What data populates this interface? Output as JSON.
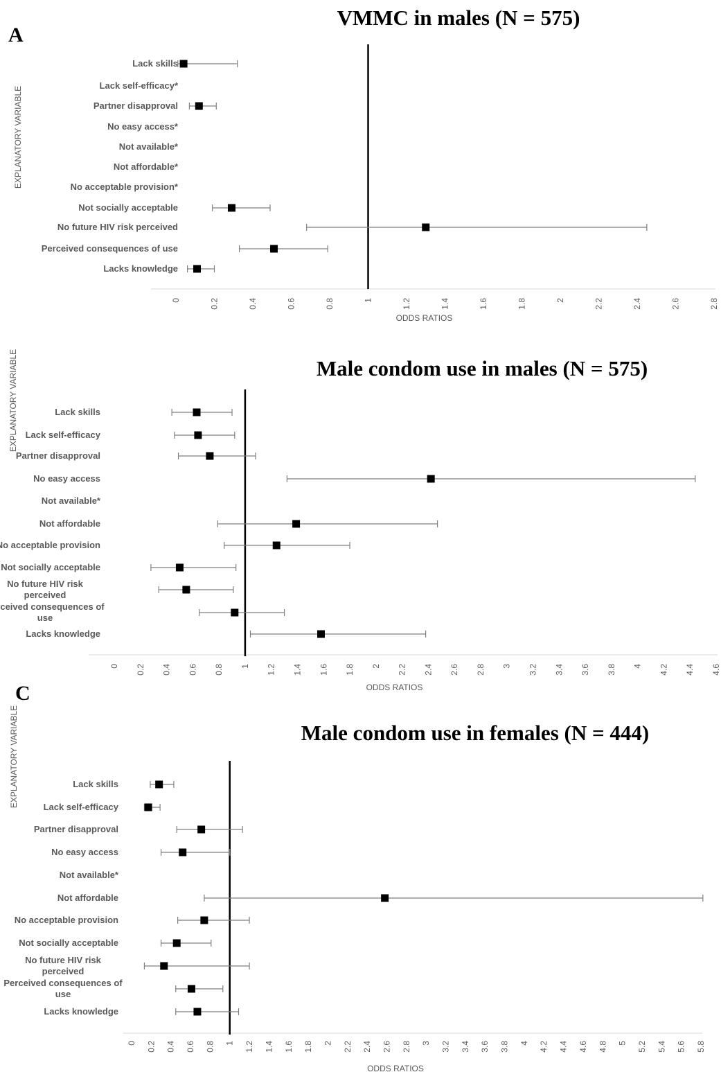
{
  "panel_letters": [
    "A",
    "",
    "C"
  ],
  "chart_data": [
    {
      "type": "scatter",
      "title": "VMMC in males (N = 575)",
      "xlabel": "ODDS RATIOS",
      "ylabel": "EXPLANATORY VARIABLE",
      "reference_line": 1,
      "xlim": [
        0,
        2.8
      ],
      "x_ticks": [
        "0",
        "0.2",
        "0.4",
        "0.6",
        "0.8",
        "1",
        "1.2",
        "1.4",
        "1.6",
        "1.8",
        "2",
        "2.2",
        "2.4",
        "2.6",
        "2.8"
      ],
      "categories": [
        "Lack skills",
        "Lack self-efficacy*",
        "Partner disapproval",
        "No easy access*",
        "Not available*",
        "Not affordable*",
        "No acceptable provision*",
        "Not socially acceptable",
        "No future HIV risk perceived",
        "Perceived consequences of use",
        "Lacks knowledge"
      ],
      "values": [
        0.04,
        null,
        0.12,
        null,
        null,
        null,
        null,
        0.29,
        1.3,
        0.51,
        0.11
      ],
      "ci_lower": [
        0.01,
        null,
        0.07,
        null,
        null,
        null,
        null,
        0.19,
        0.68,
        0.33,
        0.06
      ],
      "ci_upper": [
        0.32,
        null,
        0.21,
        null,
        null,
        null,
        null,
        0.49,
        2.45,
        0.79,
        0.2
      ]
    },
    {
      "type": "scatter",
      "title": "Male condom use in males (N = 575)",
      "xlabel": "ODDS RATIOS",
      "ylabel": "EXPLANATORY VARIABLE",
      "reference_line": 1,
      "xlim": [
        0,
        4.6
      ],
      "x_ticks": [
        "0",
        "0.2",
        "0.4",
        "0.6",
        "0.8",
        "1",
        "1.2",
        "1.4",
        "1.6",
        "1.8",
        "2",
        "2.2",
        "2.4",
        "2.6",
        "2.8",
        "3",
        "3.2",
        "3.4",
        "3.6",
        "3.8",
        "4",
        "4.2",
        "4.4",
        "4.6"
      ],
      "categories": [
        "Lack skills",
        "Lack self-efficacy",
        "Partner disapproval",
        "No easy access",
        "Not available*",
        "Not affordable",
        "No acceptable provision",
        "Not socially acceptable",
        "No future HIV risk perceived",
        "Perceived consequences of use",
        "Lacks knowledge"
      ],
      "values": [
        0.63,
        0.64,
        0.73,
        2.42,
        null,
        1.39,
        1.24,
        0.5,
        0.55,
        0.92,
        1.58
      ],
      "ci_lower": [
        0.44,
        0.46,
        0.49,
        1.32,
        null,
        0.79,
        0.84,
        0.28,
        0.34,
        0.65,
        1.04
      ],
      "ci_upper": [
        0.9,
        0.92,
        1.08,
        4.44,
        null,
        2.47,
        1.8,
        0.93,
        0.91,
        1.3,
        2.38
      ]
    },
    {
      "type": "scatter",
      "title": "Male condom use in females (N = 444)",
      "xlabel": "ODDS RATIOS",
      "ylabel": "EXPLANATORY VARIABLE",
      "reference_line": 1,
      "xlim": [
        0,
        5.8
      ],
      "x_ticks": [
        "0",
        "0.2",
        "0.4",
        "0.6",
        "0.8",
        "1",
        "1.2",
        "1.4",
        "1.6",
        "1.8",
        "2",
        "2.2",
        "2.4",
        "2.6",
        "2.8",
        "3",
        "3.2",
        "3.4",
        "3.6",
        "3.8",
        "4",
        "4.2",
        "4.4",
        "4.6",
        "4.8",
        "5",
        "5.2",
        "5.4",
        "5.6",
        "5.8"
      ],
      "categories": [
        "Lack  skills",
        "Lack self-efficacy",
        "Partner disapproval",
        "No easy access",
        "Not available*",
        "Not affordable",
        "No acceptable provision",
        "Not socially acceptable",
        "No future HIV risk perceived",
        "Perceived consequences of use",
        "Lacks knowledge"
      ],
      "values": [
        0.28,
        0.17,
        0.71,
        0.52,
        null,
        2.58,
        0.74,
        0.46,
        0.33,
        0.61,
        0.67
      ],
      "ci_lower": [
        0.19,
        0.13,
        0.46,
        0.3,
        null,
        0.74,
        0.47,
        0.3,
        0.13,
        0.45,
        0.45
      ],
      "ci_upper": [
        0.43,
        0.29,
        1.13,
        1.0,
        null,
        5.82,
        1.2,
        0.81,
        1.2,
        0.93,
        1.09
      ]
    }
  ]
}
